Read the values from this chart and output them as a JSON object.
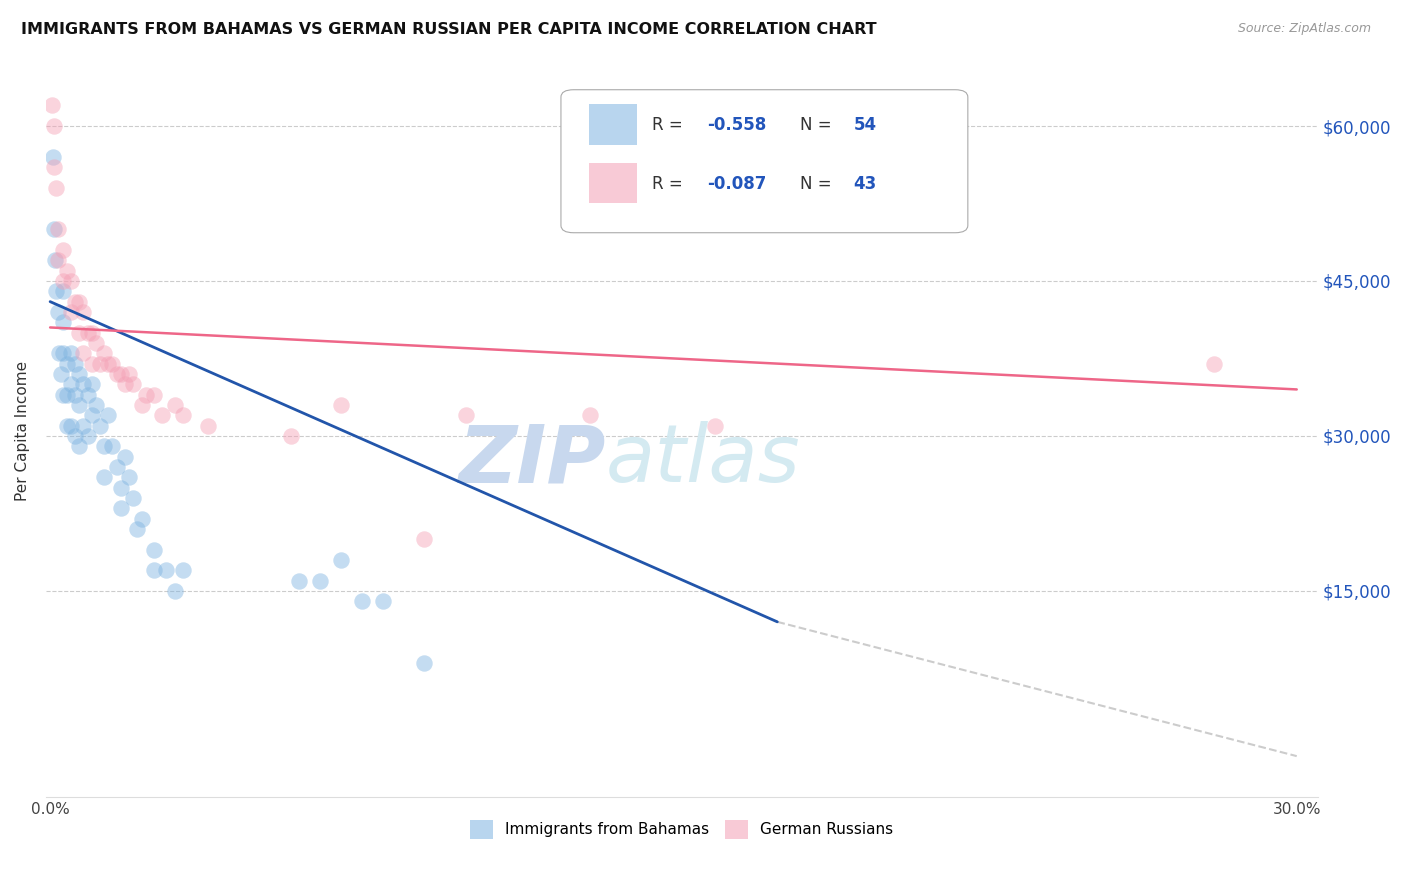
{
  "title": "IMMIGRANTS FROM BAHAMAS VS GERMAN RUSSIAN PER CAPITA INCOME CORRELATION CHART",
  "source": "Source: ZipAtlas.com",
  "ylabel": "Per Capita Income",
  "yticks": [
    0,
    15000,
    30000,
    45000,
    60000
  ],
  "ytick_labels": [
    "",
    "$15,000",
    "$30,000",
    "$45,000",
    "$60,000"
  ],
  "ylim": [
    -5000,
    66000
  ],
  "xlim": [
    -0.001,
    0.305
  ],
  "legend_label1": "Immigrants from Bahamas",
  "legend_label2": "German Russians",
  "color_blue": "#7EB3E0",
  "color_pink": "#F4A0B5",
  "color_blue_line": "#2255AA",
  "color_pink_line": "#EE6688",
  "color_dashed": "#CCCCCC",
  "watermark_zip": "ZIP",
  "watermark_atlas": "atlas",
  "blue_scatter_x": [
    0.0008,
    0.001,
    0.0012,
    0.0015,
    0.002,
    0.0022,
    0.0025,
    0.003,
    0.003,
    0.003,
    0.003,
    0.004,
    0.004,
    0.004,
    0.005,
    0.005,
    0.005,
    0.006,
    0.006,
    0.006,
    0.007,
    0.007,
    0.007,
    0.008,
    0.008,
    0.009,
    0.009,
    0.01,
    0.01,
    0.011,
    0.012,
    0.013,
    0.013,
    0.014,
    0.015,
    0.016,
    0.017,
    0.017,
    0.018,
    0.019,
    0.02,
    0.021,
    0.022,
    0.025,
    0.025,
    0.028,
    0.03,
    0.032,
    0.06,
    0.065,
    0.07,
    0.075,
    0.08,
    0.09
  ],
  "blue_scatter_y": [
    57000,
    50000,
    47000,
    44000,
    42000,
    38000,
    36000,
    44000,
    41000,
    38000,
    34000,
    37000,
    34000,
    31000,
    38000,
    35000,
    31000,
    37000,
    34000,
    30000,
    36000,
    33000,
    29000,
    35000,
    31000,
    34000,
    30000,
    35000,
    32000,
    33000,
    31000,
    29000,
    26000,
    32000,
    29000,
    27000,
    25000,
    23000,
    28000,
    26000,
    24000,
    21000,
    22000,
    19000,
    17000,
    17000,
    15000,
    17000,
    16000,
    16000,
    18000,
    14000,
    14000,
    8000
  ],
  "pink_scatter_x": [
    0.0005,
    0.001,
    0.001,
    0.0015,
    0.002,
    0.002,
    0.003,
    0.003,
    0.004,
    0.005,
    0.005,
    0.006,
    0.007,
    0.007,
    0.008,
    0.008,
    0.009,
    0.01,
    0.01,
    0.011,
    0.012,
    0.013,
    0.014,
    0.015,
    0.016,
    0.017,
    0.018,
    0.019,
    0.02,
    0.022,
    0.023,
    0.025,
    0.027,
    0.03,
    0.032,
    0.038,
    0.058,
    0.07,
    0.09,
    0.1,
    0.13,
    0.16,
    0.28
  ],
  "pink_scatter_y": [
    62000,
    60000,
    56000,
    54000,
    50000,
    47000,
    48000,
    45000,
    46000,
    45000,
    42000,
    43000,
    43000,
    40000,
    42000,
    38000,
    40000,
    40000,
    37000,
    39000,
    37000,
    38000,
    37000,
    37000,
    36000,
    36000,
    35000,
    36000,
    35000,
    33000,
    34000,
    34000,
    32000,
    33000,
    32000,
    31000,
    30000,
    33000,
    20000,
    32000,
    32000,
    31000,
    37000
  ],
  "blue_line_x": [
    0.0,
    0.175
  ],
  "blue_line_y": [
    43000,
    12000
  ],
  "pink_line_x": [
    0.0,
    0.3
  ],
  "pink_line_y": [
    40500,
    34500
  ],
  "dashed_line_x": [
    0.175,
    0.3
  ],
  "dashed_line_y": [
    12000,
    -1000
  ]
}
